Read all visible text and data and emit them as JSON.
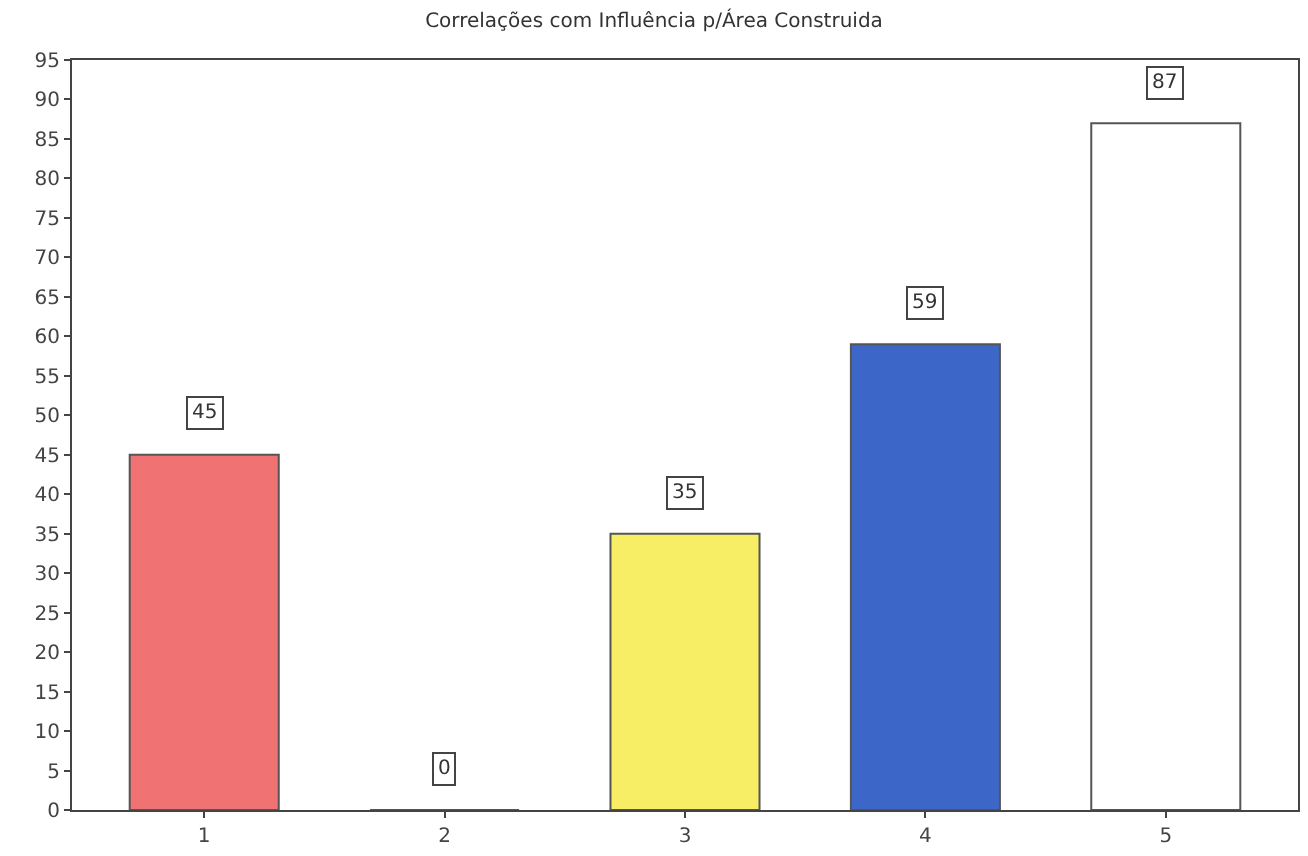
{
  "chart_data": {
    "type": "bar",
    "title": "Correlações com Influência p/Área Construida",
    "categories": [
      "1",
      "2",
      "3",
      "4",
      "5"
    ],
    "values": [
      45,
      0,
      35,
      59,
      87
    ],
    "colors": [
      "#f07272",
      "#555555",
      "#f8ee66",
      "#3c66c8",
      "#ffffff"
    ],
    "ylim": [
      0,
      95
    ],
    "yticks": [
      0,
      5,
      10,
      15,
      20,
      25,
      30,
      35,
      40,
      45,
      50,
      55,
      60,
      65,
      70,
      75,
      80,
      85,
      90,
      95
    ],
    "legend": false,
    "data_labels": true
  }
}
